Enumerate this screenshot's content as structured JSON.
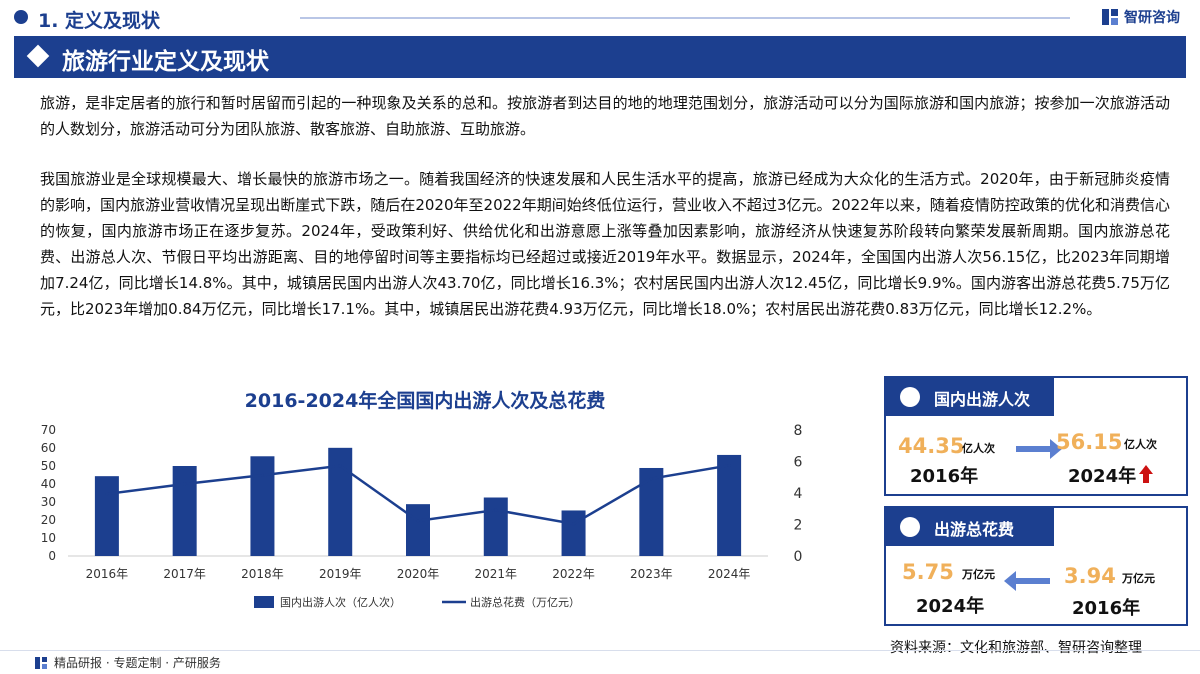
{
  "header": {
    "section_title": "1. 定义及现状",
    "brand": "智研咨询"
  },
  "banner": {
    "title": "旅游行业定义及现状"
  },
  "paragraphs": {
    "p1": "旅游，是非定居者的旅行和暂时居留而引起的一种现象及关系的总和。按旅游者到达目的地的地理范围划分，旅游活动可以分为国际旅游和国内旅游；按参加一次旅游活动的人数划分，旅游活动可分为团队旅游、散客旅游、自助旅游、互助旅游。",
    "p2": "我国旅游业是全球规模最大、增长最快的旅游市场之一。随着我国经济的快速发展和人民生活水平的提高，旅游已经成为大众化的生活方式。2020年，由于新冠肺炎疫情的影响，国内旅游业营收情况呈现出断崖式下跌，随后在2020年至2022年期间始终低位运行，营业收入不超过3亿元。2022年以来，随着疫情防控政策的优化和消费信心的恢复，国内旅游市场正在逐步复苏。2024年，受政策利好、供给优化和出游意愿上涨等叠加因素影响，旅游经济从快速复苏阶段转向繁荣发展新周期。国内旅游总花费、出游总人次、节假日平均出游距离、目的地停留时间等主要指标均已经超过或接近2019年水平。数据显示，2024年，全国国内出游人次56.15亿，比2023年同期增加7.24亿，同比增长14.8%。其中，城镇居民国内出游人次43.70亿，同比增长16.3%；农村居民国内出游人次12.45亿，同比增长9.9%。国内游客出游总花费5.75万亿元，比2023年增加0.84万亿元，同比增长17.1%。其中，城镇居民出游花费4.93万亿元，同比增长18.0%；农村居民出游花费0.83万亿元，同比增长12.2%。"
  },
  "chart_data": {
    "type": "bar+line",
    "title": "2016-2024年全国国内出游人次及总花费",
    "categories": [
      "2016年",
      "2017年",
      "2018年",
      "2019年",
      "2020年",
      "2021年",
      "2022年",
      "2023年",
      "2024年"
    ],
    "series": [
      {
        "name": "国内出游人次（亿人次）",
        "type": "bar",
        "axis": "left",
        "color": "#1c3f8f",
        "values": [
          44.35,
          50.0,
          55.4,
          60.1,
          28.8,
          32.5,
          25.3,
          48.9,
          56.15
        ]
      },
      {
        "name": "出游总花费（万亿元）",
        "type": "line",
        "axis": "right",
        "color": "#1c3f8f",
        "values": [
          3.94,
          4.57,
          5.13,
          5.73,
          2.23,
          2.92,
          2.04,
          4.91,
          5.75
        ]
      }
    ],
    "ylim_left": [
      0,
      70
    ],
    "yticks_left": [
      "0",
      "10",
      "20",
      "30",
      "40",
      "50",
      "60",
      "70"
    ],
    "ylim_right": [
      0,
      8
    ],
    "yticks_right": [
      "0",
      "2",
      "4",
      "6",
      "8"
    ],
    "legend_position": "bottom"
  },
  "panel_trips": {
    "title": "国内出游人次",
    "from_value": "44.35",
    "from_unit": "亿人次",
    "from_year": "2016年",
    "to_value": "56.15",
    "to_unit": "亿人次",
    "to_year": "2024年"
  },
  "panel_spend": {
    "title": "出游总花费",
    "left_value": "5.75",
    "left_unit": "万亿元",
    "left_year": "2024年",
    "right_value": "3.94",
    "right_unit": "万亿元",
    "right_year": "2016年"
  },
  "source": "资料来源：文化和旅游部、智研咨询整理",
  "footer": "精品研报 · 专题定制 · 产研服务",
  "colors": {
    "primary": "#1c3f8f",
    "accent_number": "#f0b05a",
    "up_arrow": "#cc1111"
  }
}
